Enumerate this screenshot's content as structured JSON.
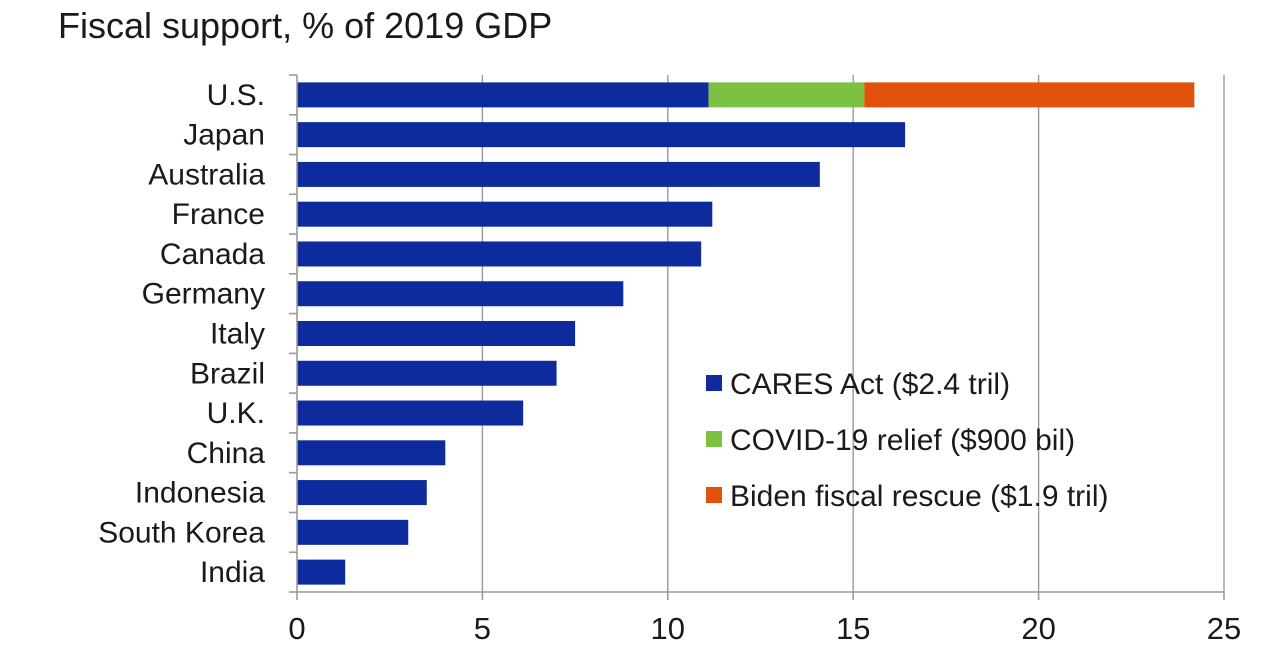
{
  "chart_data": {
    "type": "bar",
    "orientation": "horizontal",
    "stacked": true,
    "title": "Fiscal support, % of 2019 GDP",
    "xlabel": "",
    "ylabel": "",
    "xlim": [
      0,
      25
    ],
    "xticks": [
      0,
      5,
      10,
      15,
      20,
      25
    ],
    "grid": true,
    "legend_position": "lower-right",
    "categories": [
      "U.S.",
      "Japan",
      "Australia",
      "France",
      "Canada",
      "Germany",
      "Italy",
      "Brazil",
      "U.K.",
      "China",
      "Indonesia",
      "South Korea",
      "India"
    ],
    "series": [
      {
        "name": "CARES Act ($2.4 tril)",
        "color": "#0d2b9c",
        "values": [
          11.1,
          16.4,
          14.1,
          11.2,
          10.9,
          8.8,
          7.5,
          7.0,
          6.1,
          4.0,
          3.5,
          3.0,
          1.3
        ]
      },
      {
        "name": "COVID-19 relief ($900 bil)",
        "color": "#7dc142",
        "values": [
          4.2,
          0,
          0,
          0,
          0,
          0,
          0,
          0,
          0,
          0,
          0,
          0,
          0
        ]
      },
      {
        "name": "Biden fiscal rescue ($1.9 tril)",
        "color": "#e2520c",
        "values": [
          8.9,
          0,
          0,
          0,
          0,
          0,
          0,
          0,
          0,
          0,
          0,
          0,
          0
        ]
      }
    ]
  }
}
